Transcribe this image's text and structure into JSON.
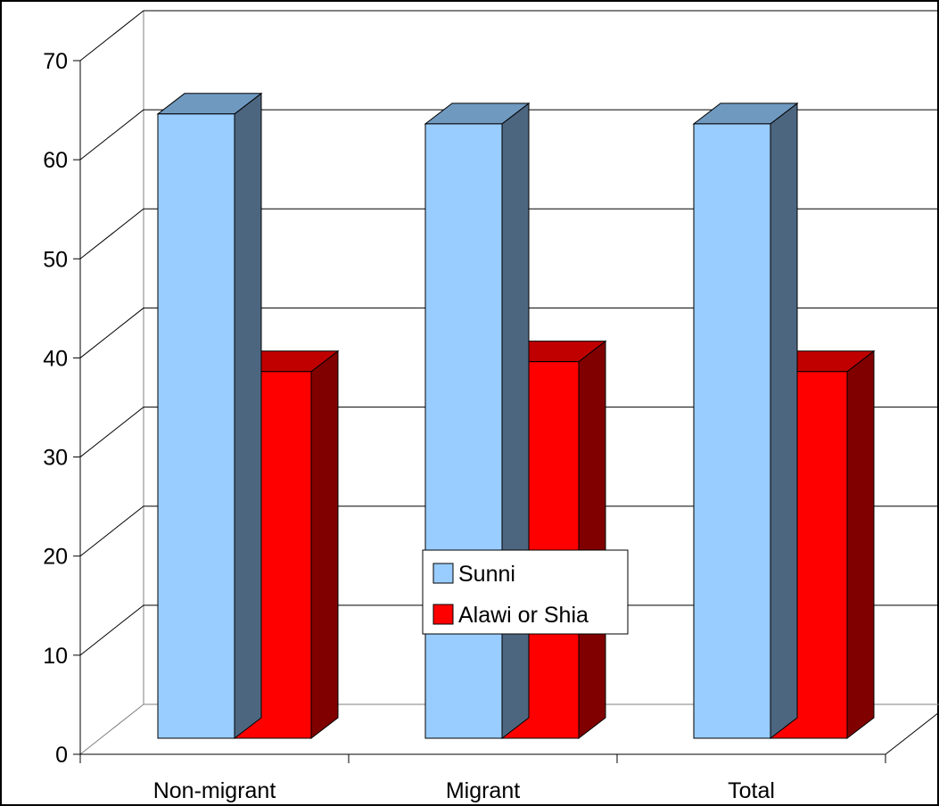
{
  "chart_data": {
    "type": "bar",
    "title": "",
    "xlabel": "",
    "ylabel": "",
    "categories": [
      "Non-migrant",
      "Migrant",
      "Total"
    ],
    "series": [
      {
        "name": "Sunni",
        "values": [
          63,
          62,
          62
        ],
        "color": "#99ccff",
        "top_color": "#7099c0",
        "side_color": "#4d6680"
      },
      {
        "name": "Alawi or Shia",
        "values": [
          37,
          38,
          37
        ],
        "color": "#ff0000",
        "top_color": "#c00000",
        "side_color": "#800000"
      }
    ],
    "ylim": [
      0,
      70
    ],
    "yticks": [
      0,
      10,
      20,
      30,
      40,
      50,
      60,
      70
    ],
    "grid": true,
    "legend_position": "center-bottom (inside plot)"
  }
}
